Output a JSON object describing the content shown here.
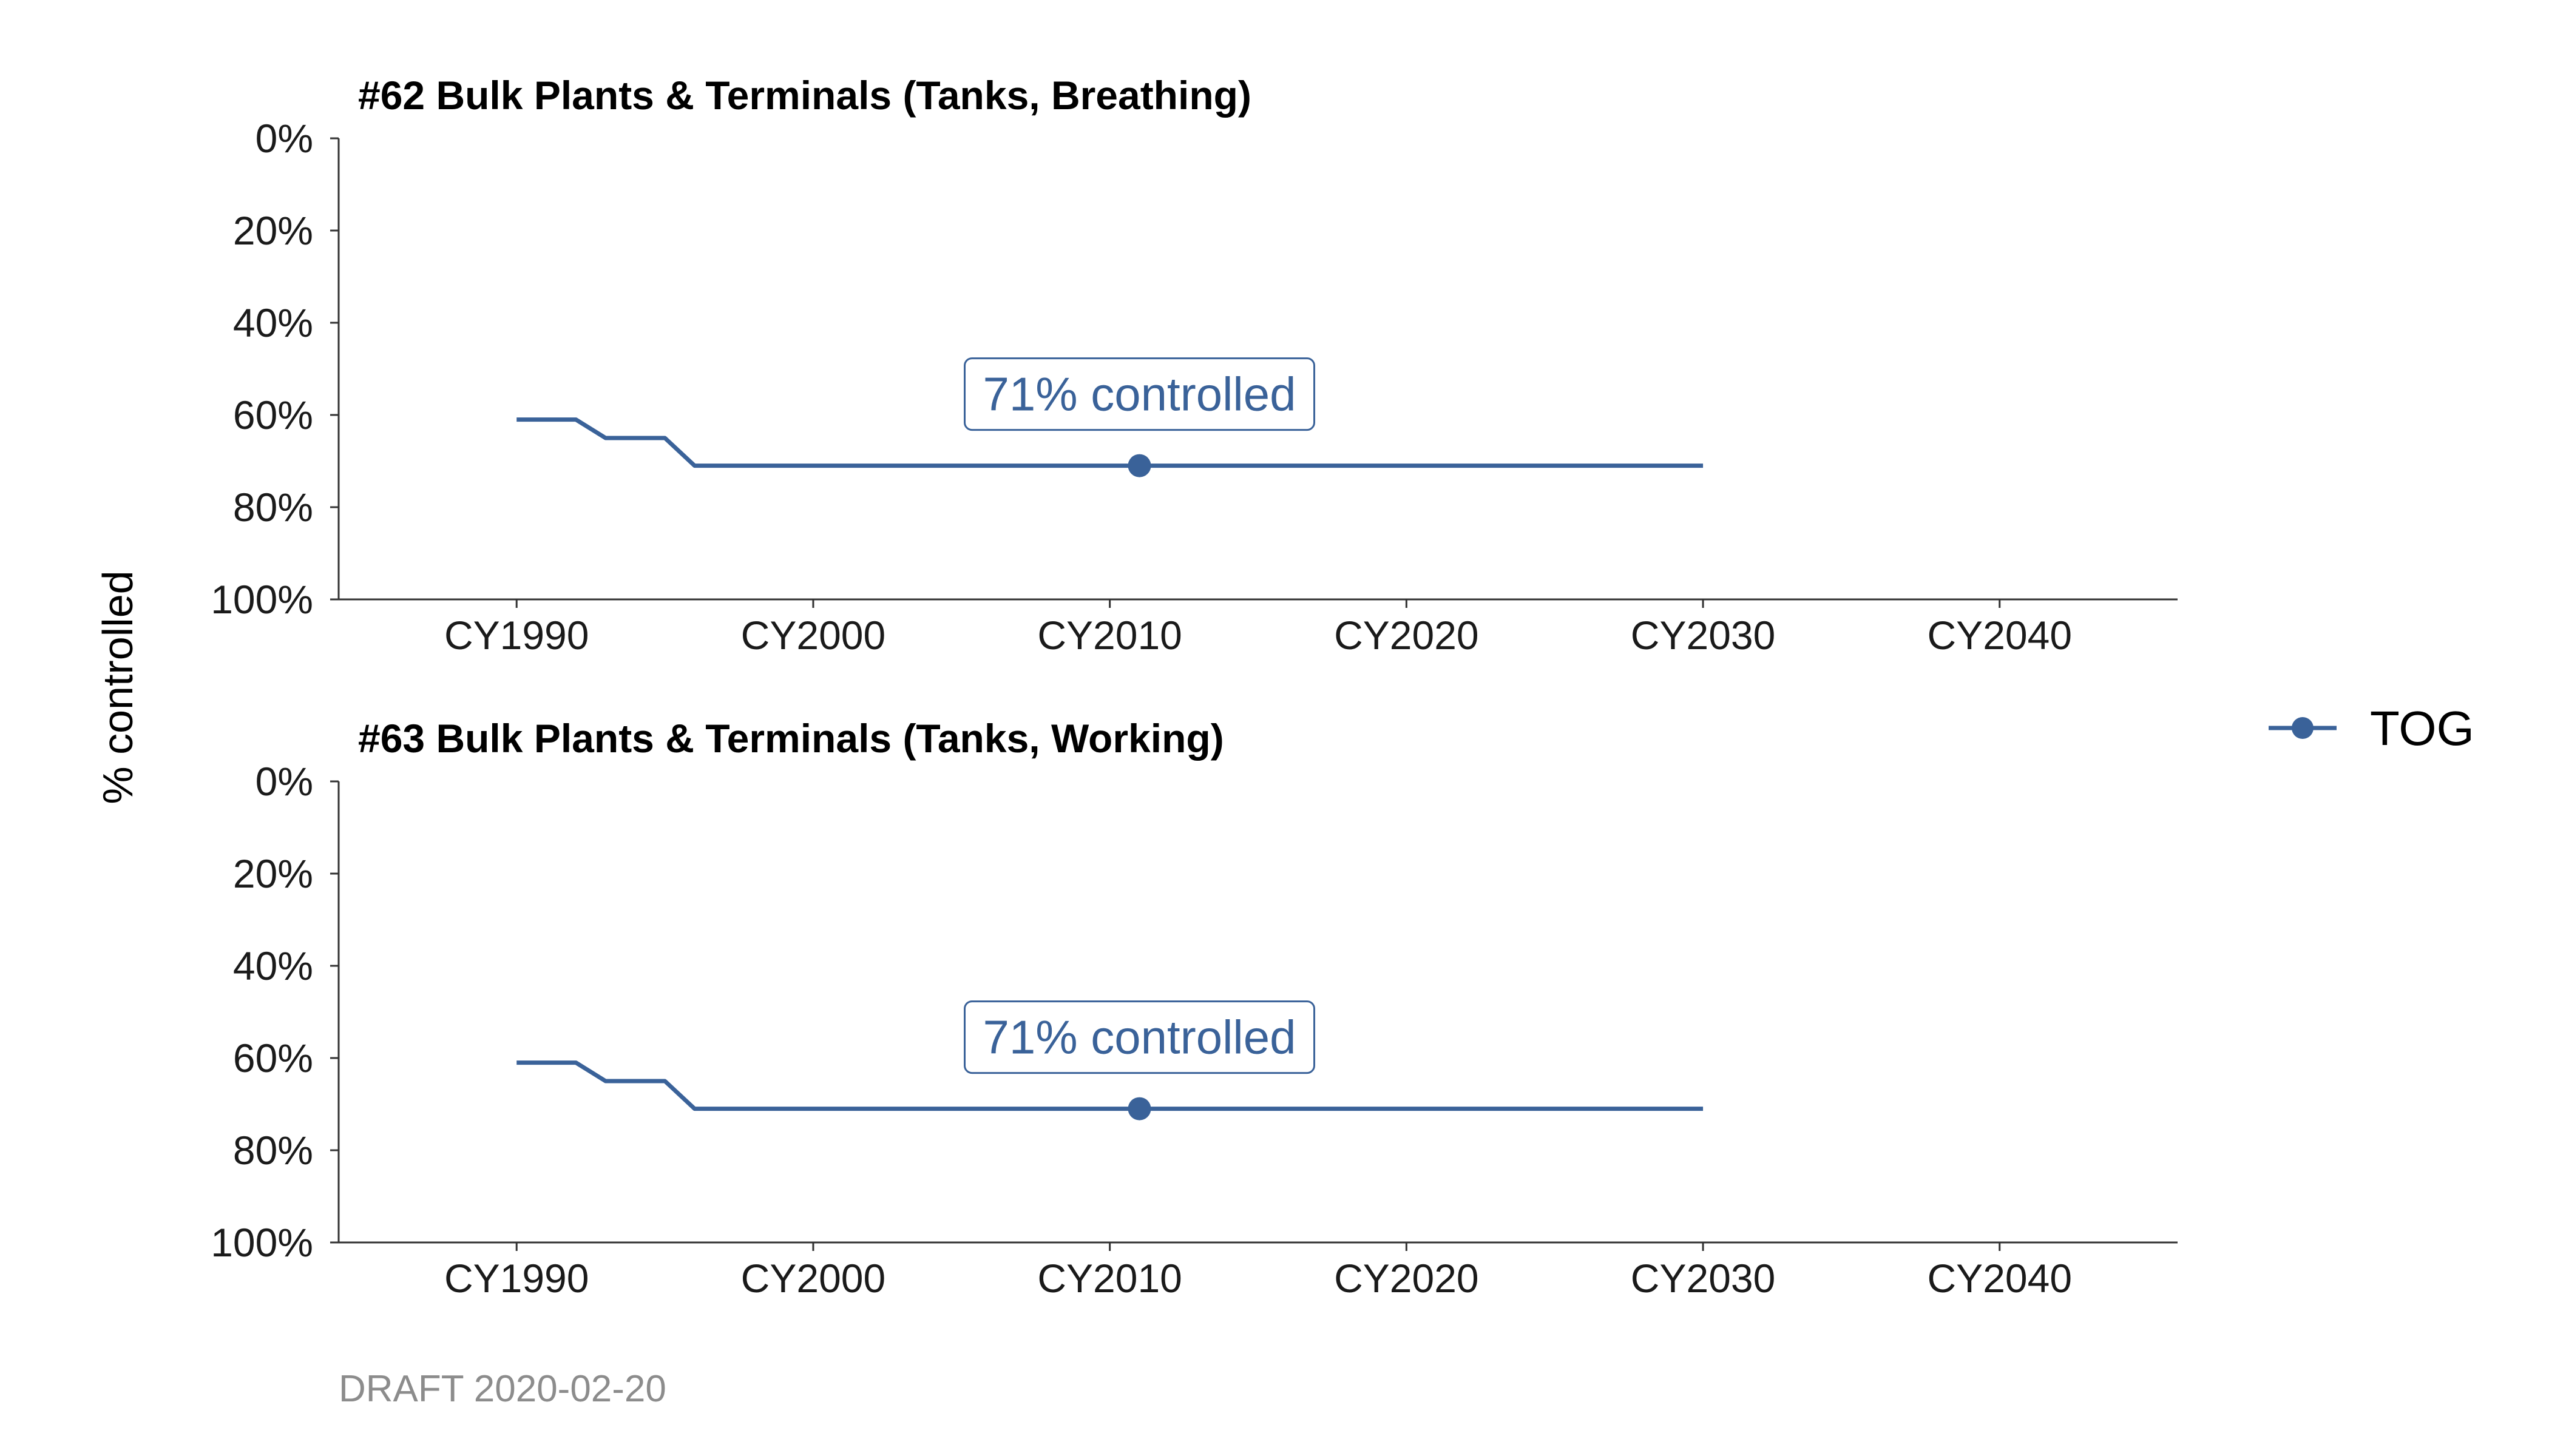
{
  "caption": "DRAFT 2020-02-20",
  "colors": {
    "series": "#3A6299",
    "axis": "#333333",
    "text": "#1a1a1a",
    "caption": "#8c8c8c"
  },
  "chart_data": [
    {
      "type": "line",
      "title": "#62 Bulk Plants & Terminals (Tanks, Breathing)",
      "xlabel": "",
      "ylabel": "% controlled",
      "x_ticks": [
        "CY1990",
        "CY2000",
        "CY2010",
        "CY2020",
        "CY2030",
        "CY2040"
      ],
      "y_ticks": [
        "0%",
        "20%",
        "40%",
        "60%",
        "80%",
        "100%"
      ],
      "y_reversed": true,
      "xlim": [
        1984,
        2046
      ],
      "ylim": [
        0,
        100
      ],
      "series": [
        {
          "name": "TOG",
          "x": [
            1990,
            1992,
            1993,
            1995,
            1996,
            2030
          ],
          "y": [
            61,
            61,
            65,
            65,
            71,
            71
          ],
          "marker": {
            "x": 2011,
            "y": 71
          }
        }
      ],
      "annotation": {
        "text": "71% controlled",
        "x": 2011,
        "y": 71
      }
    },
    {
      "type": "line",
      "title": "#63 Bulk Plants & Terminals (Tanks, Working)",
      "xlabel": "",
      "ylabel": "% controlled",
      "x_ticks": [
        "CY1990",
        "CY2000",
        "CY2010",
        "CY2020",
        "CY2030",
        "CY2040"
      ],
      "y_ticks": [
        "0%",
        "20%",
        "40%",
        "60%",
        "80%",
        "100%"
      ],
      "y_reversed": true,
      "xlim": [
        1984,
        2046
      ],
      "ylim": [
        0,
        100
      ],
      "series": [
        {
          "name": "TOG",
          "x": [
            1990,
            1992,
            1993,
            1995,
            1996,
            2030
          ],
          "y": [
            61,
            61,
            65,
            65,
            71,
            71
          ],
          "marker": {
            "x": 2011,
            "y": 71
          }
        }
      ],
      "annotation": {
        "text": "71% controlled",
        "x": 2011,
        "y": 71
      }
    }
  ],
  "legend": {
    "placement": "right",
    "items": [
      {
        "label": "TOG"
      }
    ]
  }
}
